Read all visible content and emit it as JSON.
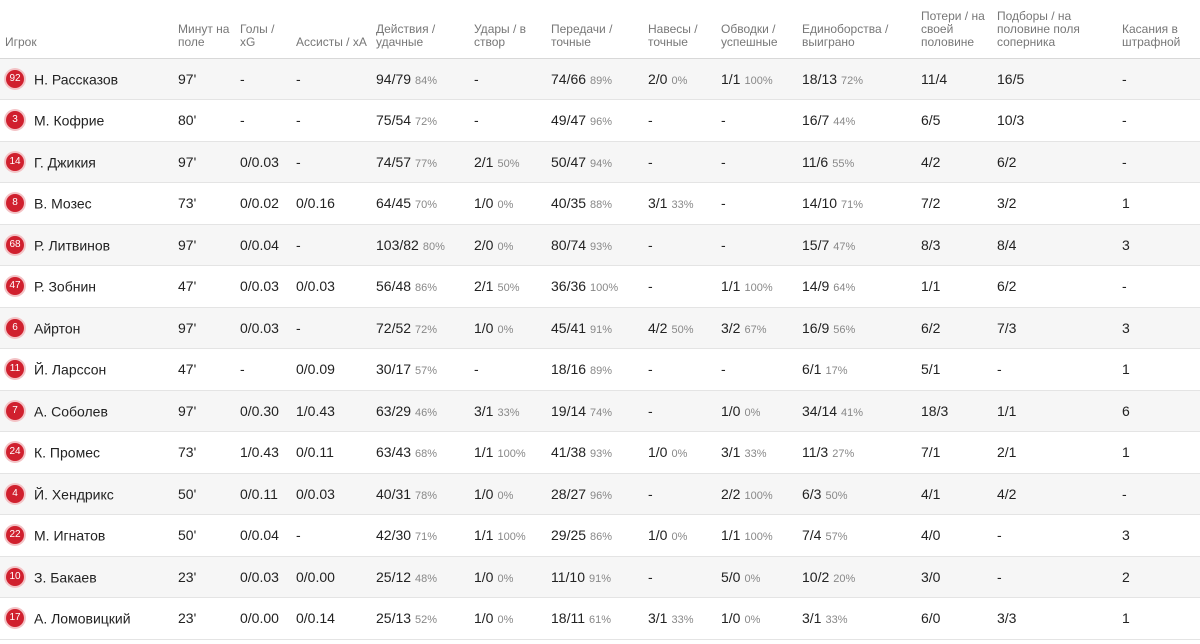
{
  "columns": [
    {
      "key": "player",
      "label": "Игрок"
    },
    {
      "key": "minutes",
      "label": "Минут на поле"
    },
    {
      "key": "goals",
      "label": "Голы / xG"
    },
    {
      "key": "assists",
      "label": "Ассисты / xA"
    },
    {
      "key": "actions",
      "label": "Действия / удачные"
    },
    {
      "key": "shots",
      "label": "Удары / в створ"
    },
    {
      "key": "passes",
      "label": "Передачи / точные"
    },
    {
      "key": "crosses",
      "label": "Навесы / точные"
    },
    {
      "key": "dribbles",
      "label": "Обводки / успешные"
    },
    {
      "key": "duels",
      "label": "Единоборства / выиграно"
    },
    {
      "key": "losses",
      "label": "Потери / на своей половине"
    },
    {
      "key": "recoveries",
      "label": "Подборы / на половине поля соперника"
    },
    {
      "key": "touches",
      "label": "Касания в штрафной"
    }
  ],
  "badge_color": "#d0202e",
  "rows": [
    {
      "number": "92",
      "name": "Н. Рассказов",
      "minutes": "97'",
      "goals": "-",
      "assists": "-",
      "actions": "94/79",
      "actions_pct": "84%",
      "shots": "-",
      "shots_pct": "",
      "passes": "74/66",
      "passes_pct": "89%",
      "crosses": "2/0",
      "crosses_pct": "0%",
      "dribbles": "1/1",
      "dribbles_pct": "100%",
      "duels": "18/13",
      "duels_pct": "72%",
      "losses": "11/4",
      "recoveries": "16/5",
      "touches": "-"
    },
    {
      "number": "3",
      "name": "М. Кофрие",
      "minutes": "80'",
      "goals": "-",
      "assists": "-",
      "actions": "75/54",
      "actions_pct": "72%",
      "shots": "-",
      "shots_pct": "",
      "passes": "49/47",
      "passes_pct": "96%",
      "crosses": "-",
      "crosses_pct": "",
      "dribbles": "-",
      "dribbles_pct": "",
      "duels": "16/7",
      "duels_pct": "44%",
      "losses": "6/5",
      "recoveries": "10/3",
      "touches": "-"
    },
    {
      "number": "14",
      "name": "Г. Джикия",
      "minutes": "97'",
      "goals": "0/0.03",
      "assists": "-",
      "actions": "74/57",
      "actions_pct": "77%",
      "shots": "2/1",
      "shots_pct": "50%",
      "passes": "50/47",
      "passes_pct": "94%",
      "crosses": "-",
      "crosses_pct": "",
      "dribbles": "-",
      "dribbles_pct": "",
      "duels": "11/6",
      "duels_pct": "55%",
      "losses": "4/2",
      "recoveries": "6/2",
      "touches": "-"
    },
    {
      "number": "8",
      "name": "В. Мозес",
      "minutes": "73'",
      "goals": "0/0.02",
      "assists": "0/0.16",
      "actions": "64/45",
      "actions_pct": "70%",
      "shots": "1/0",
      "shots_pct": "0%",
      "passes": "40/35",
      "passes_pct": "88%",
      "crosses": "3/1",
      "crosses_pct": "33%",
      "dribbles": "-",
      "dribbles_pct": "",
      "duels": "14/10",
      "duels_pct": "71%",
      "losses": "7/2",
      "recoveries": "3/2",
      "touches": "1"
    },
    {
      "number": "68",
      "name": "Р. Литвинов",
      "minutes": "97'",
      "goals": "0/0.04",
      "assists": "-",
      "actions": "103/82",
      "actions_pct": "80%",
      "shots": "2/0",
      "shots_pct": "0%",
      "passes": "80/74",
      "passes_pct": "93%",
      "crosses": "-",
      "crosses_pct": "",
      "dribbles": "-",
      "dribbles_pct": "",
      "duels": "15/7",
      "duels_pct": "47%",
      "losses": "8/3",
      "recoveries": "8/4",
      "touches": "3"
    },
    {
      "number": "47",
      "name": "Р. Зобнин",
      "minutes": "47'",
      "goals": "0/0.03",
      "assists": "0/0.03",
      "actions": "56/48",
      "actions_pct": "86%",
      "shots": "2/1",
      "shots_pct": "50%",
      "passes": "36/36",
      "passes_pct": "100%",
      "crosses": "-",
      "crosses_pct": "",
      "dribbles": "1/1",
      "dribbles_pct": "100%",
      "duels": "14/9",
      "duels_pct": "64%",
      "losses": "1/1",
      "recoveries": "6/2",
      "touches": "-"
    },
    {
      "number": "6",
      "name": "Айртон",
      "minutes": "97'",
      "goals": "0/0.03",
      "assists": "-",
      "actions": "72/52",
      "actions_pct": "72%",
      "shots": "1/0",
      "shots_pct": "0%",
      "passes": "45/41",
      "passes_pct": "91%",
      "crosses": "4/2",
      "crosses_pct": "50%",
      "dribbles": "3/2",
      "dribbles_pct": "67%",
      "duels": "16/9",
      "duels_pct": "56%",
      "losses": "6/2",
      "recoveries": "7/3",
      "touches": "3"
    },
    {
      "number": "11",
      "name": "Й. Ларссон",
      "minutes": "47'",
      "goals": "-",
      "assists": "0/0.09",
      "actions": "30/17",
      "actions_pct": "57%",
      "shots": "-",
      "shots_pct": "",
      "passes": "18/16",
      "passes_pct": "89%",
      "crosses": "-",
      "crosses_pct": "",
      "dribbles": "-",
      "dribbles_pct": "",
      "duels": "6/1",
      "duels_pct": "17%",
      "losses": "5/1",
      "recoveries": "-",
      "touches": "1"
    },
    {
      "number": "7",
      "name": "А. Соболев",
      "minutes": "97'",
      "goals": "0/0.30",
      "assists": "1/0.43",
      "actions": "63/29",
      "actions_pct": "46%",
      "shots": "3/1",
      "shots_pct": "33%",
      "passes": "19/14",
      "passes_pct": "74%",
      "crosses": "-",
      "crosses_pct": "",
      "dribbles": "1/0",
      "dribbles_pct": "0%",
      "duels": "34/14",
      "duels_pct": "41%",
      "losses": "18/3",
      "recoveries": "1/1",
      "touches": "6"
    },
    {
      "number": "24",
      "name": "К. Промес",
      "minutes": "73'",
      "goals": "1/0.43",
      "assists": "0/0.11",
      "actions": "63/43",
      "actions_pct": "68%",
      "shots": "1/1",
      "shots_pct": "100%",
      "passes": "41/38",
      "passes_pct": "93%",
      "crosses": "1/0",
      "crosses_pct": "0%",
      "dribbles": "3/1",
      "dribbles_pct": "33%",
      "duels": "11/3",
      "duels_pct": "27%",
      "losses": "7/1",
      "recoveries": "2/1",
      "touches": "1"
    },
    {
      "number": "4",
      "name": "Й. Хендрикс",
      "minutes": "50'",
      "goals": "0/0.11",
      "assists": "0/0.03",
      "actions": "40/31",
      "actions_pct": "78%",
      "shots": "1/0",
      "shots_pct": "0%",
      "passes": "28/27",
      "passes_pct": "96%",
      "crosses": "-",
      "crosses_pct": "",
      "dribbles": "2/2",
      "dribbles_pct": "100%",
      "duels": "6/3",
      "duels_pct": "50%",
      "losses": "4/1",
      "recoveries": "4/2",
      "touches": "-"
    },
    {
      "number": "22",
      "name": "М. Игнатов",
      "minutes": "50'",
      "goals": "0/0.04",
      "assists": "-",
      "actions": "42/30",
      "actions_pct": "71%",
      "shots": "1/1",
      "shots_pct": "100%",
      "passes": "29/25",
      "passes_pct": "86%",
      "crosses": "1/0",
      "crosses_pct": "0%",
      "dribbles": "1/1",
      "dribbles_pct": "100%",
      "duels": "7/4",
      "duels_pct": "57%",
      "losses": "4/0",
      "recoveries": "-",
      "touches": "3"
    },
    {
      "number": "10",
      "name": "З. Бакаев",
      "minutes": "23'",
      "goals": "0/0.03",
      "assists": "0/0.00",
      "actions": "25/12",
      "actions_pct": "48%",
      "shots": "1/0",
      "shots_pct": "0%",
      "passes": "11/10",
      "passes_pct": "91%",
      "crosses": "-",
      "crosses_pct": "",
      "dribbles": "5/0",
      "dribbles_pct": "0%",
      "duels": "10/2",
      "duels_pct": "20%",
      "losses": "3/0",
      "recoveries": "-",
      "touches": "2"
    },
    {
      "number": "17",
      "name": "А. Ломовицкий",
      "minutes": "23'",
      "goals": "0/0.00",
      "assists": "0/0.14",
      "actions": "25/13",
      "actions_pct": "52%",
      "shots": "1/0",
      "shots_pct": "0%",
      "passes": "18/11",
      "passes_pct": "61%",
      "crosses": "3/1",
      "crosses_pct": "33%",
      "dribbles": "1/0",
      "dribbles_pct": "0%",
      "duels": "3/1",
      "duels_pct": "33%",
      "losses": "6/0",
      "recoveries": "3/3",
      "touches": "1"
    }
  ]
}
